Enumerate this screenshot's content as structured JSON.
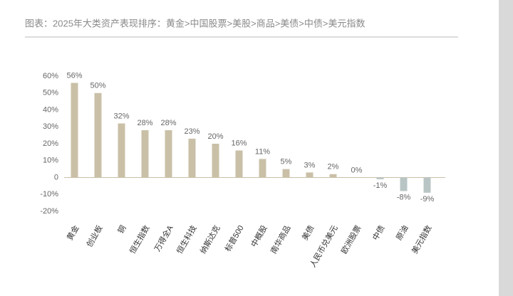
{
  "chart_data": {
    "type": "bar",
    "title": "图表：2025年大类资产表现排序：黄金>中国股票>美股>商品>美债>中债>美元指数",
    "categories": [
      "黄金",
      "创业板",
      "铜",
      "恒生指数",
      "万得全A",
      "恒生科技",
      "纳斯达克",
      "标普500",
      "中概股",
      "南华商品",
      "美债",
      "人民币兑美元",
      "欧洲股票",
      "中债",
      "原油",
      "美元指数"
    ],
    "values": [
      56,
      50,
      32,
      28,
      28,
      23,
      20,
      16,
      11,
      5,
      3,
      2,
      0,
      -1,
      -8,
      -9
    ],
    "value_labels": [
      "56%",
      "50%",
      "32%",
      "28%",
      "28%",
      "23%",
      "20%",
      "16%",
      "11%",
      "5%",
      "3%",
      "2%",
      "0%",
      "-1%",
      "-8%",
      "-9%"
    ],
    "color": "#c9c0a7",
    "negative_color": "#b9c5c5",
    "ylim": [
      -20,
      60
    ],
    "yticks": [
      {
        "value": -20,
        "label": "-20%"
      },
      {
        "value": -10,
        "label": "-10%"
      },
      0,
      {
        "value": 10,
        "label": "10%"
      },
      {
        "value": 20,
        "label": "20%"
      },
      {
        "value": 30,
        "label": "30%"
      },
      {
        "value": 40,
        "label": "40%"
      },
      {
        "value": 50,
        "label": "50%"
      },
      {
        "value": 60,
        "label": "60%"
      }
    ],
    "grid": false
  }
}
